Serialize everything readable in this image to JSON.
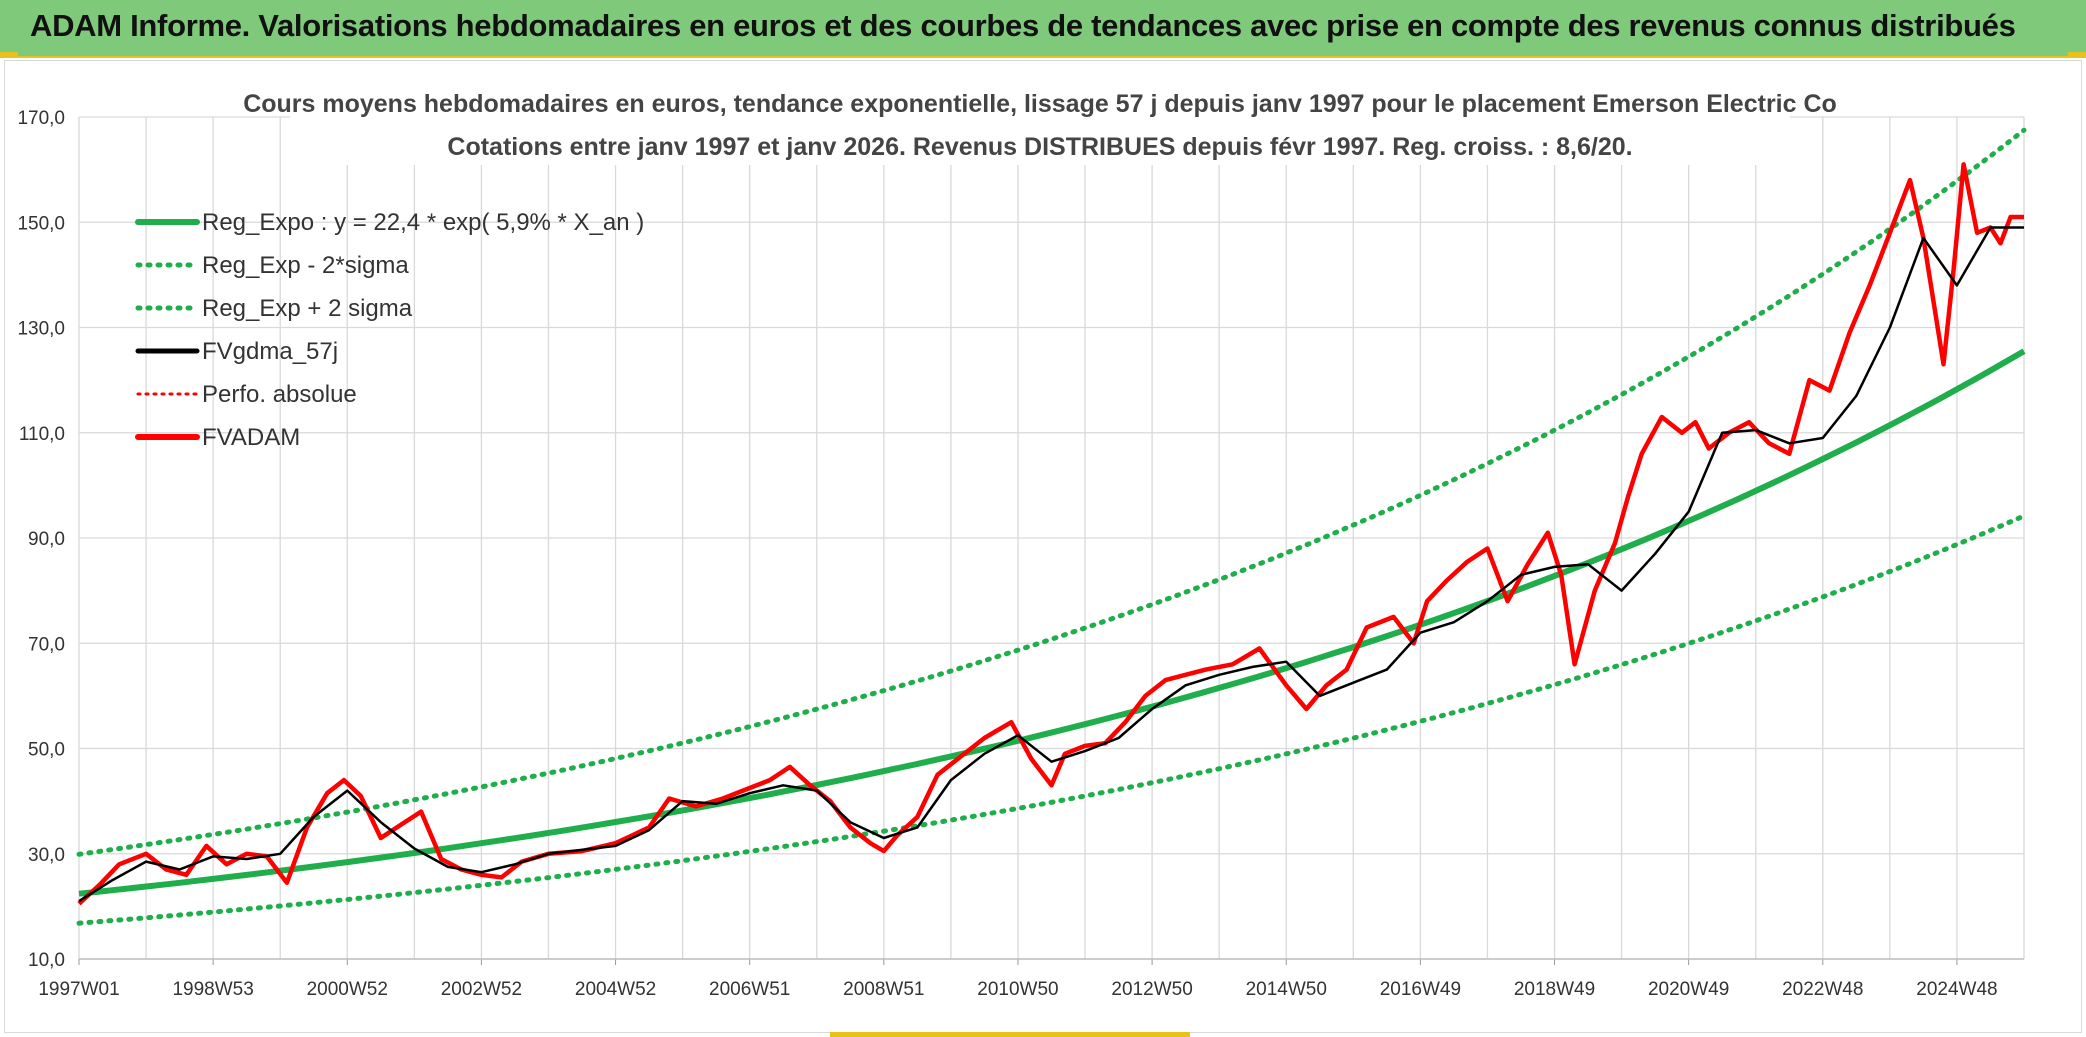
{
  "banner": {
    "title": "ADAM Informe. Valorisations hebdomadaires en euros et des courbes de tendances avec prise en compte des revenus connus distribués"
  },
  "colors": {
    "banner_bg": "#7fc97a",
    "accent_yellow": "#e6c21a",
    "reg_green": "#1fae4b",
    "fvgdma_black": "#000000",
    "fvadam_red": "#ff0000",
    "grid": "#d9d9d9"
  },
  "chart_data": {
    "type": "line",
    "title_line1": "Cours moyens hebdomadaires en euros, tendance exponentielle, lissage 57 j depuis janv 1997 pour le placement Emerson Electric Co",
    "title_line2": "Cotations entre janv 1997 et janv 2026. Revenus DISTRIBUES depuis févr 1997. Reg. croiss. : 8,6/20.",
    "ylim": [
      10,
      170
    ],
    "yticks": [
      10,
      30,
      50,
      70,
      90,
      110,
      130,
      150,
      170
    ],
    "ytick_labels": [
      "10,0",
      "30,0",
      "50,0",
      "70,0",
      "90,0",
      "110,0",
      "130,0",
      "150,0",
      "170,0"
    ],
    "xlim": [
      1997.0,
      2026.0
    ],
    "xticks": [
      {
        "label": "1997W01",
        "x": 1997.0
      },
      {
        "label": "1998W53",
        "x": 1999.0
      },
      {
        "label": "2000W52",
        "x": 2001.0
      },
      {
        "label": "2002W52",
        "x": 2003.0
      },
      {
        "label": "2004W52",
        "x": 2005.0
      },
      {
        "label": "2006W51",
        "x": 2007.0
      },
      {
        "label": "2008W51",
        "x": 2009.0
      },
      {
        "label": "2010W50",
        "x": 2011.0
      },
      {
        "label": "2012W50",
        "x": 2013.0
      },
      {
        "label": "2014W50",
        "x": 2015.0
      },
      {
        "label": "2016W49",
        "x": 2017.0
      },
      {
        "label": "2018W49",
        "x": 2019.0
      },
      {
        "label": "2020W49",
        "x": 2021.0
      },
      {
        "label": "2022W48",
        "x": 2023.0
      },
      {
        "label": "2024W48",
        "x": 2025.0
      }
    ],
    "legend": [
      {
        "key": "reg",
        "label": "Reg_Expo : y = 22,4 * exp( 5,9% *  X_an )",
        "style": "solid-green"
      },
      {
        "key": "lower",
        "label": "Reg_Exp - 2*sigma",
        "style": "dotted-green"
      },
      {
        "key": "upper",
        "label": "Reg_Exp + 2 sigma",
        "style": "dotted-green"
      },
      {
        "key": "fvgdma",
        "label": "FVgdma_57j",
        "style": "solid-black"
      },
      {
        "key": "perfo",
        "label": "Perfo. absolue",
        "style": "dotted-red"
      },
      {
        "key": "fvadam",
        "label": "FVADAM",
        "style": "solid-red"
      }
    ],
    "series": [
      {
        "name": "Reg_Expo",
        "x": [
          1997,
          1999,
          2001,
          2003,
          2005,
          2007,
          2009,
          2011,
          2013,
          2015,
          2017,
          2019,
          2021,
          2023,
          2025,
          2026
        ],
        "values": [
          22.4,
          25.2,
          28.4,
          32.0,
          36.1,
          40.7,
          45.9,
          51.7,
          58.2,
          65.6,
          73.9,
          83.3,
          93.8,
          105.7,
          119.1,
          125.5
        ]
      },
      {
        "name": "Reg_Exp - 2*sigma",
        "x": [
          1997,
          1999,
          2001,
          2003,
          2005,
          2007,
          2009,
          2011,
          2013,
          2015,
          2017,
          2019,
          2021,
          2023,
          2025,
          2026
        ],
        "values": [
          16.8,
          18.9,
          21.3,
          24.0,
          27.1,
          30.5,
          34.4,
          38.8,
          43.7,
          49.2,
          55.4,
          62.5,
          70.4,
          79.3,
          89.3,
          94.2
        ]
      },
      {
        "name": "Reg_Exp + 2 sigma",
        "x": [
          1997,
          1999,
          2001,
          2003,
          2005,
          2007,
          2009,
          2011,
          2013,
          2015,
          2017,
          2019,
          2021,
          2023,
          2025,
          2026
        ],
        "values": [
          29.9,
          33.7,
          37.9,
          42.7,
          48.2,
          54.3,
          61.2,
          68.9,
          77.6,
          87.5,
          98.6,
          111.1,
          125.2,
          141.0,
          158.9,
          167.5
        ]
      },
      {
        "name": "FVADAM",
        "x": [
          1997.0,
          1997.3,
          1997.6,
          1998.0,
          1998.3,
          1998.6,
          1998.9,
          1999.2,
          1999.5,
          1999.8,
          2000.1,
          2000.4,
          2000.7,
          2000.95,
          2001.2,
          2001.5,
          2001.8,
          2002.1,
          2002.4,
          2002.7,
          2003.0,
          2003.3,
          2003.6,
          2004.0,
          2004.5,
          2005.0,
          2005.5,
          2005.8,
          2006.2,
          2006.6,
          2007.0,
          2007.3,
          2007.6,
          2007.9,
          2008.2,
          2008.5,
          2008.8,
          2009.0,
          2009.2,
          2009.5,
          2009.8,
          2010.1,
          2010.5,
          2010.9,
          2011.2,
          2011.5,
          2011.7,
          2012.0,
          2012.3,
          2012.6,
          2012.9,
          2013.2,
          2013.5,
          2013.8,
          2014.2,
          2014.6,
          2015.0,
          2015.3,
          2015.6,
          2015.9,
          2016.2,
          2016.6,
          2016.9,
          2017.1,
          2017.4,
          2017.7,
          2018.0,
          2018.3,
          2018.6,
          2018.9,
          2019.1,
          2019.3,
          2019.6,
          2019.9,
          2020.1,
          2020.3,
          2020.6,
          2020.9,
          2021.1,
          2021.3,
          2021.6,
          2021.9,
          2022.2,
          2022.5,
          2022.8,
          2023.1,
          2023.4,
          2023.7,
          2024.0,
          2024.3,
          2024.5,
          2024.8,
          2024.95,
          2025.1,
          2025.3,
          2025.5,
          2025.65,
          2025.8,
          2026.0
        ],
        "values": [
          20.5,
          24.0,
          28.0,
          30.0,
          27.0,
          26.0,
          31.5,
          28.0,
          30.0,
          29.5,
          24.5,
          35.0,
          41.5,
          44.0,
          41.0,
          33.0,
          35.5,
          38.0,
          29.0,
          27.0,
          26.0,
          25.5,
          28.5,
          30.0,
          30.5,
          32.0,
          35.0,
          40.5,
          39.0,
          40.5,
          42.5,
          44.0,
          46.5,
          43.0,
          40.0,
          35.0,
          32.0,
          30.5,
          33.5,
          37.0,
          45.0,
          48.0,
          52.0,
          55.0,
          48.0,
          43.0,
          49.0,
          50.5,
          51.0,
          55.0,
          60.0,
          63.0,
          64.0,
          65.0,
          66.0,
          69.0,
          62.0,
          57.5,
          62.0,
          65.0,
          73.0,
          75.0,
          70.0,
          78.0,
          82.0,
          85.5,
          88.0,
          78.0,
          85.0,
          91.0,
          83.0,
          66.0,
          80.0,
          89.0,
          98.0,
          106.0,
          113.0,
          110.0,
          112.0,
          107.0,
          110.0,
          112.0,
          108.0,
          106.0,
          120.0,
          118.0,
          129.0,
          138.0,
          148.0,
          158.0,
          147.0,
          123.0,
          141.0,
          161.0,
          148.0,
          149.0,
          146.0,
          151.0,
          151.0
        ]
      },
      {
        "name": "FVgdma_57j",
        "x": [
          1997.0,
          1997.5,
          1998.0,
          1998.5,
          1999.0,
          1999.5,
          2000.0,
          2000.5,
          2001.0,
          2001.5,
          2002.0,
          2002.5,
          2003.0,
          2003.5,
          2004.0,
          2005.0,
          2005.5,
          2006.0,
          2006.5,
          2007.0,
          2007.5,
          2008.0,
          2008.5,
          2009.0,
          2009.5,
          2010.0,
          2010.5,
          2011.0,
          2011.5,
          2012.0,
          2012.5,
          2013.0,
          2013.5,
          2014.0,
          2014.5,
          2015.0,
          2015.5,
          2016.0,
          2016.5,
          2017.0,
          2017.5,
          2018.0,
          2018.5,
          2019.0,
          2019.5,
          2020.0,
          2020.5,
          2021.0,
          2021.5,
          2022.0,
          2022.5,
          2023.0,
          2023.5,
          2024.0,
          2024.5,
          2025.0,
          2025.5,
          2026.0
        ],
        "values": [
          21.0,
          25.0,
          28.5,
          27.0,
          29.5,
          29.0,
          30.0,
          37.0,
          42.0,
          36.0,
          31.0,
          27.5,
          26.5,
          28.0,
          30.0,
          31.5,
          34.5,
          40.0,
          39.5,
          41.5,
          43.0,
          42.0,
          36.0,
          33.0,
          35.0,
          44.0,
          49.0,
          52.5,
          47.5,
          49.5,
          52.0,
          57.5,
          62.0,
          64.0,
          65.5,
          66.5,
          60.0,
          62.5,
          65.0,
          72.0,
          74.0,
          78.0,
          83.0,
          84.5,
          85.0,
          80.0,
          87.0,
          95.0,
          110.0,
          110.5,
          108.0,
          109.0,
          117.0,
          130.0,
          147.0,
          138.0,
          149.0,
          149.0
        ]
      }
    ]
  }
}
